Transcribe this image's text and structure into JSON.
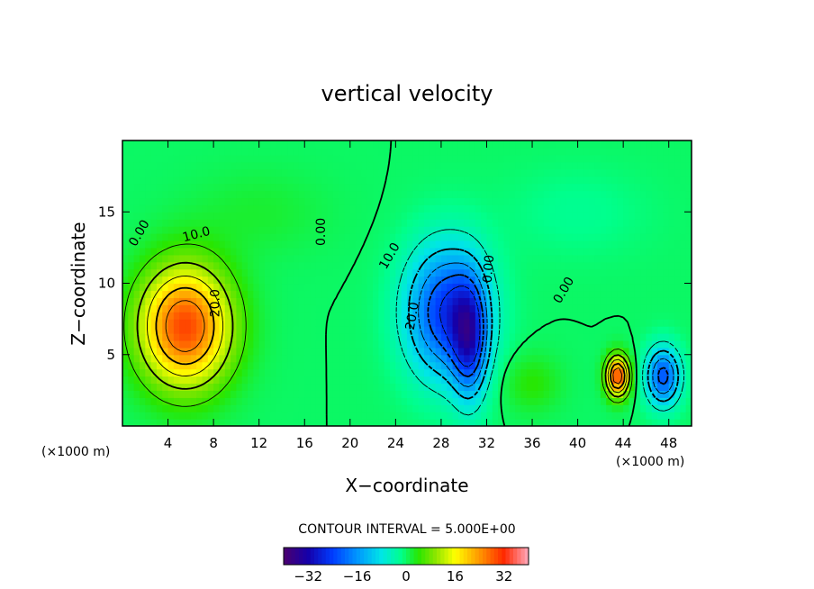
{
  "chart_data": {
    "type": "heatmap",
    "subtype": "filled contour",
    "title": "vertical velocity",
    "xlabel": "X−coordinate",
    "ylabel": "Z−coordinate",
    "x_unit_left": "(×1000 m)",
    "x_unit_right": "(×1000 m)",
    "xlim": [
      0,
      50
    ],
    "ylim": [
      0,
      20
    ],
    "x_ticks": [
      "4",
      "8",
      "12",
      "16",
      "20",
      "24",
      "28",
      "32",
      "36",
      "40",
      "44",
      "48"
    ],
    "y_ticks": [
      "5",
      "10",
      "15"
    ],
    "contour_interval_text": "CONTOUR INTERVAL = 5.000E+00",
    "colorbar": {
      "range": [
        -40,
        40
      ],
      "tick_labels": [
        "−32",
        "−16",
        "0",
        "16",
        "32"
      ],
      "tick_values": [
        -32,
        -16,
        0,
        16,
        32
      ]
    },
    "contour_labels": [
      {
        "text": "0.00",
        "x": 1.5,
        "y": 13.5,
        "angle": -60
      },
      {
        "text": "10.0",
        "x": 6.5,
        "y": 13.4,
        "angle": -15
      },
      {
        "text": "20.0",
        "x": 8.2,
        "y": 8.6,
        "angle": -90
      },
      {
        "text": "0.00",
        "x": 17.5,
        "y": 13.6,
        "angle": -90
      },
      {
        "text": "10.0",
        "x": 23.5,
        "y": 11.9,
        "angle": -60
      },
      {
        "text": "20.0",
        "x": 25.5,
        "y": 7.7,
        "angle": -80
      },
      {
        "text": "0.00",
        "x": 32.2,
        "y": 11.0,
        "angle": -85
      },
      {
        "text": "0.00",
        "x": 38.8,
        "y": 9.5,
        "angle": -60
      }
    ],
    "features": [
      {
        "x": 5.5,
        "z": 7.0,
        "value": 30,
        "sx": 4.0,
        "sz": 4.2
      },
      {
        "x": 28.5,
        "z": 8.0,
        "value": -25,
        "sx": 3.5,
        "sz": 4.5
      },
      {
        "x": 30.5,
        "z": 6.0,
        "value": -20,
        "sx": 1.5,
        "sz": 4.0
      },
      {
        "x": 43.5,
        "z": 3.5,
        "value": 30,
        "sx": 1.0,
        "sz": 1.4
      },
      {
        "x": 47.5,
        "z": 3.5,
        "value": -22,
        "sx": 1.5,
        "sz": 2.0
      },
      {
        "x": 36.0,
        "z": 3.0,
        "value": 4,
        "sx": 2.5,
        "sz": 2.0
      },
      {
        "x": 12.0,
        "z": 15.0,
        "value": 2,
        "sx": 6.0,
        "sz": 3.0
      },
      {
        "x": 40.0,
        "z": 15.0,
        "value": -2,
        "sx": 6.0,
        "sz": 3.0
      }
    ],
    "grid": false
  }
}
